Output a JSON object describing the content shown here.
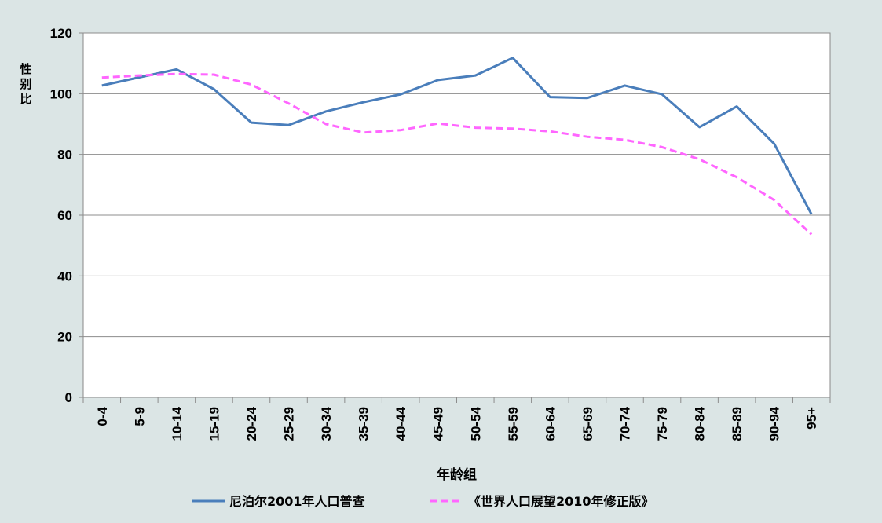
{
  "chart_data": {
    "type": "line",
    "title": "",
    "xlabel": "年龄组",
    "ylabel": "性别比",
    "ylim": [
      0,
      120
    ],
    "yticks": [
      0,
      20,
      40,
      60,
      80,
      100,
      120
    ],
    "grid": true,
    "legend_position": "bottom",
    "categories": [
      "0-4",
      "5-9",
      "10-14",
      "15-19",
      "20-24",
      "25-29",
      "30-34",
      "35-39",
      "40-44",
      "45-49",
      "50-54",
      "55-59",
      "60-64",
      "65-69",
      "70-74",
      "75-79",
      "80-84",
      "85-89",
      "90-94",
      "95+"
    ],
    "series": [
      {
        "name": "尼泊尔2001年人口普查",
        "color": "#4a7ebb",
        "dash": "solid",
        "values": [
          102.7,
          105.4,
          108.0,
          101.5,
          90.5,
          89.7,
          94.2,
          97.2,
          99.8,
          104.5,
          106.0,
          111.8,
          98.9,
          98.6,
          102.7,
          99.8,
          89.0,
          95.8,
          83.5,
          60.3
        ]
      },
      {
        "name": "《世界人口展望2010年修正版》",
        "color": "#ff66ff",
        "dash": "dashed",
        "values": [
          105.3,
          106.0,
          106.5,
          106.3,
          103.0,
          96.8,
          90.0,
          87.2,
          88.0,
          90.2,
          88.8,
          88.5,
          87.6,
          85.8,
          84.8,
          82.4,
          78.4,
          72.5,
          65.0,
          53.7
        ]
      }
    ]
  }
}
